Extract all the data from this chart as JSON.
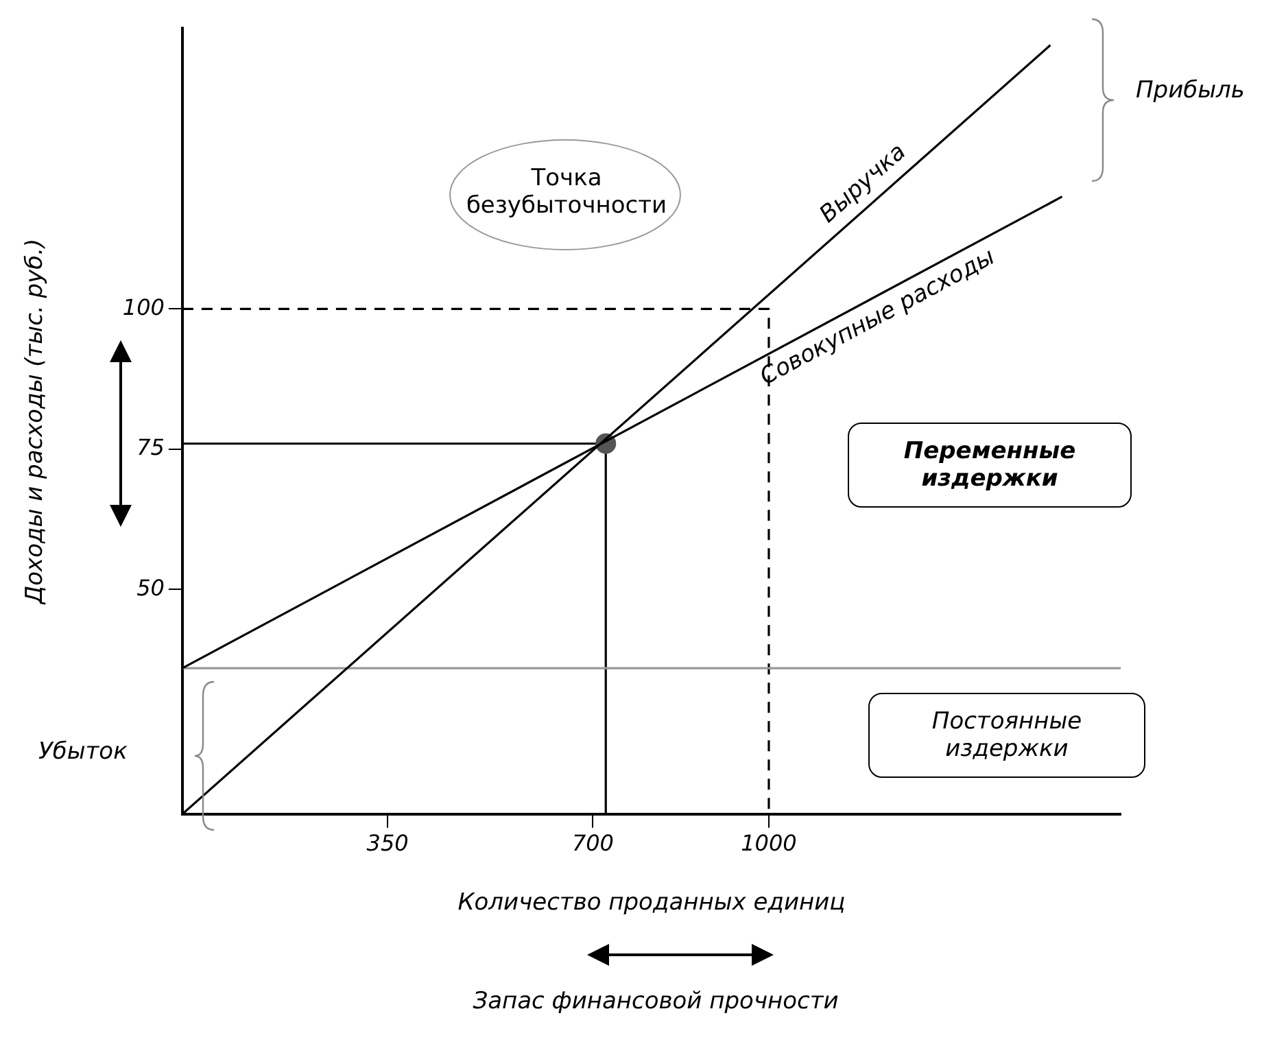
{
  "chart_data": {
    "type": "line",
    "xlabel": "Количество проданных единиц",
    "ylabel": "Доходы и расходы (тыс. руб.)",
    "xlim": [
      0,
      1600
    ],
    "ylim": [
      10,
      150
    ],
    "xticks": [
      350,
      700,
      1000
    ],
    "yticks": [
      50,
      75,
      100
    ],
    "grid": false,
    "legend": false,
    "marker": "none",
    "line_style": "solid",
    "series": [
      {
        "name": "Выручка",
        "color": "#000000",
        "x": [
          0,
          1480
        ],
        "values": [
          10,
          147
        ]
      },
      {
        "name": "Совокупные расходы",
        "color": "#000000",
        "x": [
          0,
          1500
        ],
        "values": [
          36,
          120
        ]
      },
      {
        "color": "#999999",
        "x": [
          0,
          1600
        ],
        "values": [
          36,
          36
        ]
      },
      {
        "type": "scatter",
        "marker": "circle",
        "color": "#555555",
        "x": [
          722
        ],
        "values": [
          76
        ]
      },
      {
        "color": "#000000",
        "x": [
          0,
          722,
          722
        ],
        "values": [
          76,
          76,
          10
        ]
      },
      {
        "color": "#000000",
        "line_style": "dashed",
        "x": [
          0,
          1000,
          1000
        ],
        "values": [
          100,
          100,
          10
        ]
      }
    ],
    "annotations": [
      "Точка безубыточности",
      "Прибыль",
      "Убыток",
      "Переменные издержки",
      "Постоянные издержки",
      "Запас финансовой прочности"
    ]
  }
}
